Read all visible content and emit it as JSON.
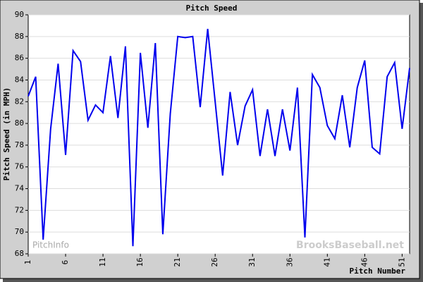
{
  "chart_data": {
    "type": "line",
    "title": "Pitch Speed",
    "x_label": "Pitch Number",
    "y_label": "Pitch Speed (in MPH)",
    "annotations": [
      "PitchInfo",
      "BrooksBaseball.net"
    ],
    "x": [
      1,
      2,
      3,
      4,
      5,
      6,
      7,
      8,
      9,
      10,
      11,
      12,
      13,
      14,
      15,
      16,
      17,
      18,
      19,
      20,
      21,
      22,
      23,
      24,
      25,
      26,
      27,
      28,
      29,
      30,
      31,
      32,
      33,
      34,
      35,
      36,
      37,
      38,
      39,
      40,
      41,
      42,
      43,
      44,
      45,
      46,
      47,
      48,
      49,
      50,
      51,
      52
    ],
    "series": [
      {
        "name": "Pitch Speed",
        "color": "#0000ee",
        "values": [
          82.5,
          84.3,
          69.3,
          79.5,
          85.5,
          77.1,
          86.7,
          85.7,
          80.3,
          81.7,
          81.0,
          86.2,
          80.5,
          87.1,
          68.7,
          86.5,
          79.6,
          87.4,
          69.8,
          80.9,
          88.0,
          87.9,
          88.0,
          81.5,
          88.7,
          82.0,
          75.2,
          82.9,
          78.0,
          81.6,
          83.1,
          77.0,
          81.3,
          77.0,
          81.3,
          77.5,
          83.3,
          69.5,
          84.5,
          83.3,
          79.8,
          78.6,
          82.6,
          77.8,
          83.3,
          85.8,
          77.8,
          77.2,
          84.3,
          85.6,
          79.5,
          85.1
        ]
      }
    ],
    "xlim": [
      1,
      52
    ],
    "xticks": [
      1,
      6,
      11,
      16,
      21,
      26,
      31,
      36,
      41,
      46,
      51
    ],
    "ylim": [
      68,
      90
    ],
    "yticks": [
      68,
      70,
      72,
      74,
      76,
      78,
      80,
      82,
      84,
      86,
      88,
      90
    ],
    "grid": true
  }
}
